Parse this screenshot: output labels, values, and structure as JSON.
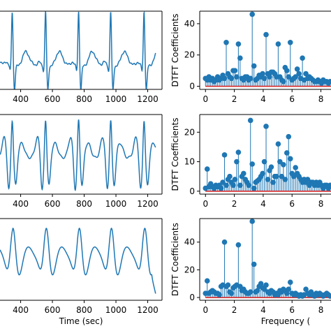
{
  "colors": {
    "series": "#1f77b4",
    "baseline": "#d62728",
    "axis": "#000000",
    "background": "#ffffff"
  },
  "chart_data": [
    {
      "type": "line",
      "position": "row-1-left",
      "xlabel": "",
      "ylabel": "",
      "xlim": [
        270,
        1290
      ],
      "ylim": [
        -1.5,
        3.6
      ],
      "yticks_shown": false,
      "xticks": [
        400,
        600,
        800,
        1000,
        1200
      ],
      "grid": false,
      "series": [
        {
          "x": [],
          "y": [],
          "beats": [
            150,
            347,
            557,
            765,
            967,
            1177
          ],
          "morphology": "ecg",
          "x_end": 1250
        }
      ]
    },
    {
      "type": "stem",
      "position": "row-1-right",
      "xlabel": "",
      "ylabel": "DTFT Coefficients",
      "xlim": [
        -0.4,
        8.7
      ],
      "ylim": [
        -2,
        48
      ],
      "xticks": [
        0,
        2,
        4,
        6,
        8
      ],
      "yticks": [
        0,
        20,
        40
      ],
      "grid": false,
      "series": [
        {
          "x": [
            0.0,
            0.12,
            0.24,
            0.36,
            0.48,
            0.6,
            0.72,
            0.84,
            0.96,
            1.08,
            1.2,
            1.32,
            1.44,
            1.56,
            1.68,
            1.8,
            1.92,
            2.04,
            2.16,
            2.28,
            2.4,
            2.52,
            2.64,
            2.76,
            2.88,
            3.0,
            3.12,
            3.24,
            3.36,
            3.48,
            3.6,
            3.72,
            3.84,
            3.96,
            4.08,
            4.2,
            4.32,
            4.44,
            4.56,
            4.68,
            4.8,
            4.92,
            5.04,
            5.16,
            5.28,
            5.4,
            5.52,
            5.64,
            5.76,
            5.88,
            6.0,
            6.12,
            6.24,
            6.36,
            6.48,
            6.6,
            6.72,
            6.84,
            6.96,
            7.08,
            7.2,
            7.32,
            7.44,
            7.56,
            7.68,
            7.8,
            7.92,
            8.04,
            8.16,
            8.28,
            8.4,
            8.52,
            8.64
          ],
          "y": [
            5,
            4,
            6,
            4,
            5,
            3,
            4,
            6,
            4,
            5,
            7,
            5,
            28,
            8,
            6,
            5,
            10,
            10,
            6,
            27,
            18,
            5,
            4,
            6,
            6,
            4,
            5,
            46,
            13,
            4,
            5,
            7,
            6,
            8,
            5,
            33,
            8,
            6,
            9,
            9,
            8,
            6,
            27,
            6,
            4,
            3,
            12,
            10,
            6,
            28,
            4,
            5,
            6,
            11,
            8,
            5,
            18,
            4,
            8,
            5,
            6,
            5,
            4,
            3,
            3,
            4,
            3,
            2,
            4,
            3,
            3,
            2,
            3
          ]
        }
      ]
    },
    {
      "type": "line",
      "position": "row-2-left",
      "xlabel": "",
      "ylabel": "",
      "xlim": [
        270,
        1290
      ],
      "ylim": [
        -3,
        3.2
      ],
      "yticks_shown": false,
      "xticks": [
        400,
        600,
        800,
        1000,
        1200
      ],
      "grid": false,
      "series": [
        {
          "x": [],
          "y": [],
          "beats": [
            150,
            347,
            557,
            765,
            967,
            1177
          ],
          "morphology": "biphasic",
          "x_end": 1250
        }
      ]
    },
    {
      "type": "stem",
      "position": "row-2-right",
      "xlabel": "",
      "ylabel": "DTFT Coefficients",
      "xlim": [
        -0.4,
        8.7
      ],
      "ylim": [
        -1,
        26
      ],
      "xticks": [
        0,
        2,
        4,
        6,
        8
      ],
      "yticks": [
        0,
        10,
        20
      ],
      "grid": false,
      "series": [
        {
          "x": [
            0.0,
            0.12,
            0.24,
            0.36,
            0.48,
            0.6,
            0.72,
            0.84,
            0.96,
            1.08,
            1.2,
            1.32,
            1.44,
            1.56,
            1.68,
            1.8,
            1.92,
            2.04,
            2.16,
            2.28,
            2.4,
            2.52,
            2.64,
            2.76,
            2.88,
            3.0,
            3.12,
            3.24,
            3.36,
            3.48,
            3.6,
            3.72,
            3.84,
            3.96,
            4.08,
            4.2,
            4.32,
            4.44,
            4.56,
            4.68,
            4.8,
            4.92,
            5.04,
            5.16,
            5.28,
            5.4,
            5.52,
            5.64,
            5.76,
            5.88,
            6.0,
            6.12,
            6.24,
            6.36,
            6.48,
            6.6,
            6.72,
            6.84,
            6.96,
            7.08,
            7.2,
            7.32,
            7.44,
            7.56,
            7.68,
            7.8,
            7.92,
            8.04,
            8.16,
            8.28,
            8.4,
            8.52,
            8.64
          ],
          "y": [
            1,
            7.5,
            1.5,
            2.5,
            1.5,
            1,
            2,
            1.5,
            2,
            1,
            3,
            12.3,
            2,
            4,
            5,
            3,
            2,
            4,
            10,
            13.2,
            2,
            5,
            6,
            4,
            3,
            2,
            24,
            9.2,
            1,
            3,
            3.5,
            4,
            5,
            6,
            10,
            22,
            4,
            7,
            8.2,
            3,
            5,
            5,
            16,
            10,
            5,
            9,
            4,
            13,
            18.5,
            11,
            6,
            5,
            8,
            6,
            5,
            4,
            3,
            4,
            3,
            4,
            2,
            3,
            3,
            2,
            3,
            2,
            3,
            2,
            1,
            2,
            2,
            1,
            2
          ]
        }
      ]
    },
    {
      "type": "line",
      "position": "row-3-left",
      "xlabel": "Time (sec)",
      "ylabel": "",
      "xlim": [
        270,
        1290
      ],
      "ylim": [
        -2.6,
        2.4
      ],
      "yticks_shown": false,
      "xticks": [
        400,
        600,
        800,
        1000,
        1200
      ],
      "grid": false,
      "series": [
        {
          "x": [],
          "y": [],
          "beats": [
            150,
            347,
            557,
            765,
            967,
            1177
          ],
          "morphology": "broad",
          "x_end": 1250
        }
      ]
    },
    {
      "type": "stem",
      "position": "row-3-right",
      "xlabel": "Frequency (",
      "ylabel": "DTFT Coefficients",
      "xlim": [
        -0.4,
        8.7
      ],
      "ylim": [
        -2,
        57
      ],
      "xticks": [
        0,
        2,
        4,
        6,
        8
      ],
      "yticks": [
        0,
        20,
        40
      ],
      "grid": false,
      "series": [
        {
          "x": [
            0.0,
            0.12,
            0.24,
            0.36,
            0.48,
            0.6,
            0.72,
            0.84,
            0.96,
            1.08,
            1.2,
            1.32,
            1.44,
            1.56,
            1.68,
            1.8,
            1.92,
            2.04,
            2.16,
            2.28,
            2.4,
            2.52,
            2.64,
            2.76,
            2.88,
            3.0,
            3.12,
            3.24,
            3.36,
            3.48,
            3.6,
            3.72,
            3.84,
            3.96,
            4.08,
            4.2,
            4.32,
            4.44,
            4.56,
            4.68,
            4.8,
            4.92,
            5.04,
            5.16,
            5.28,
            5.4,
            5.52,
            5.64,
            5.76,
            5.88,
            6.0,
            6.12,
            6.24,
            6.36,
            6.48,
            6.6,
            6.72,
            6.84,
            6.96,
            7.08,
            7.2,
            7.32,
            7.44,
            7.56,
            7.68,
            7.8,
            7.92,
            8.04,
            8.16,
            8.28,
            8.4,
            8.52,
            8.64
          ],
          "y": [
            3,
            12,
            3,
            4,
            5,
            4,
            3,
            3,
            2,
            8,
            9,
            40,
            8,
            9,
            4,
            3,
            7,
            8,
            9,
            38,
            8,
            5,
            6,
            4,
            3,
            3,
            4,
            55,
            24,
            4,
            5,
            8,
            10,
            7,
            6,
            9,
            4,
            3,
            5,
            4,
            2,
            3,
            2,
            5,
            4,
            6,
            5,
            3,
            6,
            11,
            3,
            2,
            3,
            2,
            1,
            2,
            1,
            2,
            6,
            3,
            2,
            4,
            2,
            1,
            3,
            2,
            3,
            2,
            1,
            2,
            3,
            2,
            1
          ]
        }
      ]
    }
  ]
}
